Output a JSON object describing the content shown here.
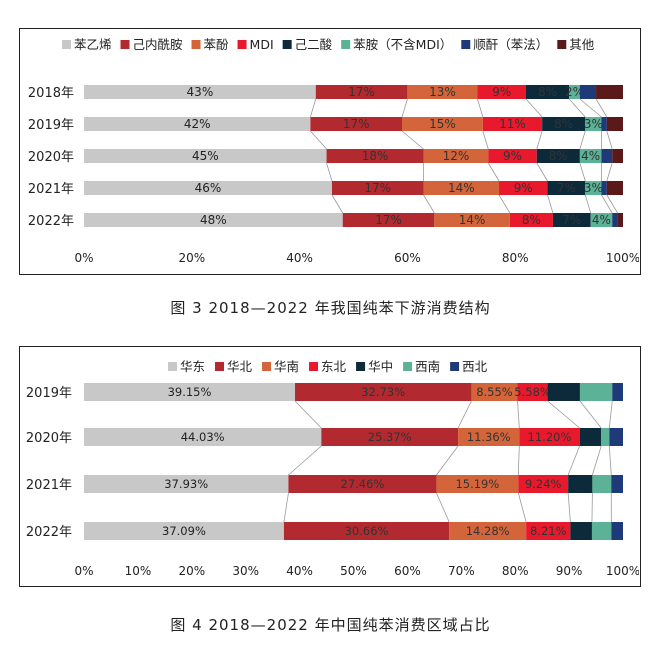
{
  "chart_data": [
    {
      "type": "bar",
      "orientation": "horizontal-stacked-percent",
      "caption": "图 3  2018—2022 年我国纯苯下游消费结构",
      "categories": [
        "2018年",
        "2019年",
        "2020年",
        "2021年",
        "2022年"
      ],
      "x_ticks": [
        "0%",
        "20%",
        "40%",
        "60%",
        "80%",
        "100%"
      ],
      "xlim": [
        0,
        100
      ],
      "legend_position": "top",
      "series": [
        {
          "name": "苯乙烯",
          "color": "#c8c8c8",
          "values": [
            43,
            42,
            45,
            46,
            48
          ],
          "labels": [
            "43%",
            "42%",
            "45%",
            "46%",
            "48%"
          ]
        },
        {
          "name": "己内酰胺",
          "color": "#b22a30",
          "values": [
            17,
            17,
            18,
            17,
            17
          ],
          "labels": [
            "17%",
            "17%",
            "18%",
            "17%",
            "17%"
          ]
        },
        {
          "name": "苯酚",
          "color": "#d4653a",
          "values": [
            13,
            15,
            12,
            14,
            14
          ],
          "labels": [
            "13%",
            "15%",
            "12%",
            "14%",
            "14%"
          ]
        },
        {
          "name": "MDI",
          "color": "#e8192c",
          "values": [
            9,
            11,
            9,
            9,
            8
          ],
          "labels": [
            "9%",
            "11%",
            "9%",
            "9%",
            "8%"
          ]
        },
        {
          "name": "己二酸",
          "color": "#0d2a3a",
          "values": [
            8,
            8,
            8,
            7,
            7
          ],
          "labels": [
            "8%",
            "8%",
            "8%",
            "7%",
            "7%"
          ]
        },
        {
          "name": "苯胺（不含MDI）",
          "color": "#5bb296",
          "values": [
            2,
            3,
            4,
            3,
            4
          ],
          "labels": [
            "2%",
            "3%",
            "4%",
            "3%",
            "4%"
          ]
        },
        {
          "name": "顺酐（苯法）",
          "color": "#1f3a78",
          "values": [
            3,
            1,
            2,
            1,
            1
          ],
          "labels": [
            "",
            "",
            "",
            "",
            ""
          ]
        },
        {
          "name": "其他",
          "color": "#5a1a1a",
          "values": [
            5,
            3,
            2,
            3,
            1
          ],
          "labels": [
            "",
            "",
            "",
            "",
            ""
          ]
        }
      ]
    },
    {
      "type": "bar",
      "orientation": "horizontal-stacked-percent",
      "caption": "图 4  2018—2022 年中国纯苯消费区域占比",
      "categories": [
        "2019年",
        "2020年",
        "2021年",
        "2022年"
      ],
      "x_ticks": [
        "0%",
        "10%",
        "20%",
        "30%",
        "40%",
        "50%",
        "60%",
        "70%",
        "80%",
        "90%",
        "100%"
      ],
      "xlim": [
        0,
        100
      ],
      "legend_position": "top",
      "series": [
        {
          "name": "华东",
          "color": "#c8c8c8",
          "values": [
            39.15,
            44.03,
            37.93,
            37.09
          ],
          "labels": [
            "39.15%",
            "44.03%",
            "37.93%",
            "37.09%"
          ]
        },
        {
          "name": "华北",
          "color": "#b22a30",
          "values": [
            32.73,
            25.37,
            27.46,
            30.66
          ],
          "labels": [
            "32.73%",
            "25.37%",
            "27.46%",
            "30.66%"
          ]
        },
        {
          "name": "华南",
          "color": "#d4653a",
          "values": [
            8.55,
            11.36,
            15.19,
            14.28
          ],
          "labels": [
            "8.55%",
            "11.36%",
            "15.19%",
            "14.28%"
          ]
        },
        {
          "name": "东北",
          "color": "#e8192c",
          "values": [
            5.58,
            11.2,
            9.24,
            8.21
          ],
          "labels": [
            "5.58%",
            "11.20%",
            "9.24%",
            "8.21%"
          ]
        },
        {
          "name": "华中",
          "color": "#0d2a3a",
          "values": [
            6,
            4,
            4.5,
            4
          ],
          "labels": [
            "",
            "",
            "",
            ""
          ]
        },
        {
          "name": "西南",
          "color": "#5bb296",
          "values": [
            6,
            1.5,
            3.5,
            3.6
          ],
          "labels": [
            "",
            "",
            "",
            ""
          ]
        },
        {
          "name": "西北",
          "color": "#1f3a78",
          "values": [
            1.99,
            2.54,
            2.18,
            2.16
          ],
          "labels": [
            "",
            "",
            "",
            ""
          ]
        }
      ]
    }
  ]
}
